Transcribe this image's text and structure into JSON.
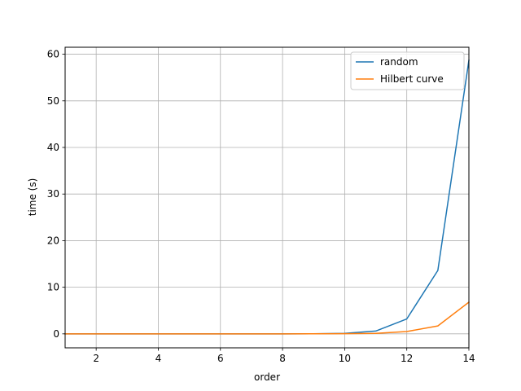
{
  "chart_data": {
    "type": "line",
    "title": "",
    "xlabel": "order",
    "ylabel": "time (s)",
    "xlim": [
      1,
      14
    ],
    "ylim": [
      -3,
      61.5
    ],
    "xticks": [
      2,
      4,
      6,
      8,
      10,
      12,
      14
    ],
    "yticks": [
      0,
      10,
      20,
      30,
      40,
      50,
      60
    ],
    "grid": true,
    "legend_position": "top-right",
    "x": [
      1,
      2,
      3,
      4,
      5,
      6,
      7,
      8,
      9,
      10,
      11,
      12,
      13,
      14
    ],
    "series": [
      {
        "name": "random",
        "color": "#1f77b4",
        "values": [
          0,
          0,
          0,
          0,
          0,
          0,
          0,
          0,
          0.02,
          0.1,
          0.6,
          3.2,
          13.6,
          58.7
        ]
      },
      {
        "name": "Hilbert curve",
        "color": "#ff7f0e",
        "values": [
          0,
          0,
          0,
          0,
          0,
          0,
          0,
          0,
          0.01,
          0.03,
          0.1,
          0.5,
          1.7,
          6.8
        ]
      }
    ]
  }
}
